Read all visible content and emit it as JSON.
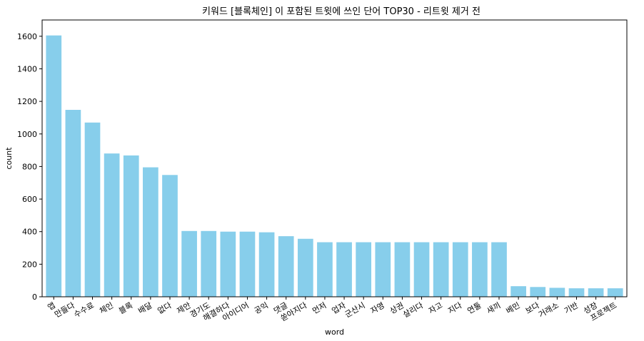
{
  "chart_data": {
    "type": "bar",
    "title": "키워드 [블록체인] 이 포함된 트윗에 쓰인 단어 TOP30 - 리트윗 제거 전",
    "xlabel": "word",
    "ylabel": "count",
    "ylim": [
      0,
      1700
    ],
    "yticks": [
      0,
      200,
      400,
      600,
      800,
      1000,
      1200,
      1400,
      1600
    ],
    "grid": false,
    "bar_color": "#87ceeb",
    "categories": [
      "앱",
      "만들다",
      "수수료",
      "체인",
      "블록",
      "배달",
      "없다",
      "제안",
      "경기도",
      "해결하다",
      "아이디어",
      "공익",
      "댓글",
      "쏟아지다",
      "먼저",
      "업자",
      "군산시",
      "자영",
      "상권",
      "살리다",
      "자고",
      "지다",
      "연툴",
      "새끼",
      "베민",
      "보다",
      "거래소",
      "기반",
      "성장",
      "프로젝트"
    ],
    "values": [
      1605,
      1148,
      1070,
      880,
      868,
      795,
      748,
      404,
      404,
      400,
      400,
      396,
      372,
      356,
      335,
      335,
      335,
      335,
      335,
      335,
      335,
      335,
      335,
      335,
      65,
      60,
      55,
      52,
      52,
      52
    ]
  }
}
